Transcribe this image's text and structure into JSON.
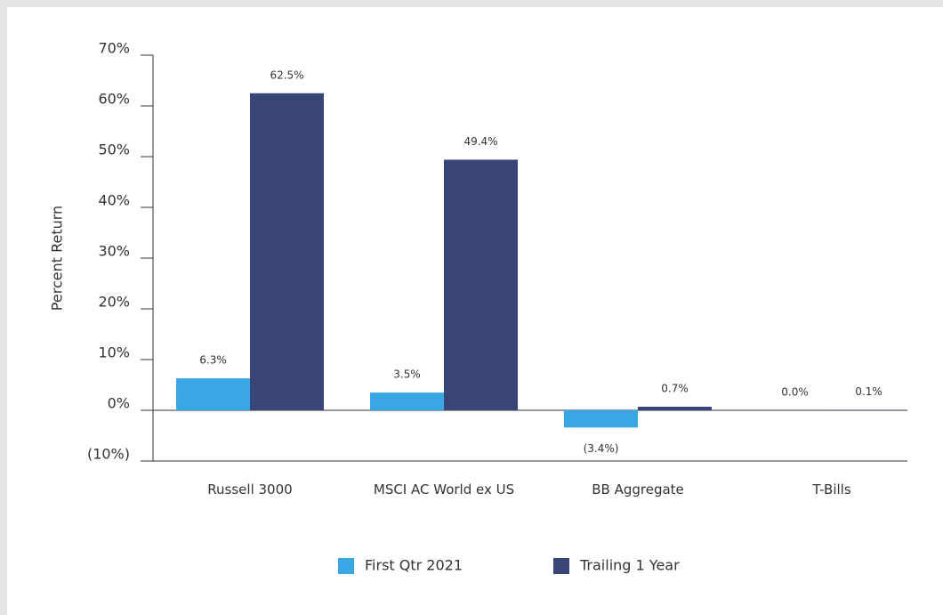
{
  "chart_data": {
    "type": "bar",
    "y_label": "Percent Return",
    "categories": [
      "Russell 3000",
      "MSCI AC World ex US",
      "BB Aggregate",
      "T-Bills"
    ],
    "series": [
      {
        "name": "First Qtr 2021",
        "color": "#3aa6e6",
        "values": [
          6.3,
          3.5,
          -3.4,
          0.0
        ],
        "value_labels": [
          "6.3%",
          "3.5%",
          "(3.4%)",
          "0.0%"
        ]
      },
      {
        "name": "Trailing 1 Year",
        "color": "#394577",
        "values": [
          62.5,
          49.4,
          0.7,
          0.1
        ],
        "value_labels": [
          "62.5%",
          "49.4%",
          "0.7%",
          "0.1%"
        ]
      }
    ],
    "ylim": [
      -10,
      70
    ],
    "yticks": [
      {
        "value": -10,
        "label": "(10%)"
      },
      {
        "value": 0,
        "label": "0%"
      },
      {
        "value": 10,
        "label": "10%"
      },
      {
        "value": 20,
        "label": "20%"
      },
      {
        "value": 30,
        "label": "30%"
      },
      {
        "value": 40,
        "label": "40%"
      },
      {
        "value": 50,
        "label": "50%"
      },
      {
        "value": 60,
        "label": "60%"
      },
      {
        "value": 70,
        "label": "70%"
      }
    ],
    "negative_color": "#c0143c",
    "legend": "bottom"
  }
}
